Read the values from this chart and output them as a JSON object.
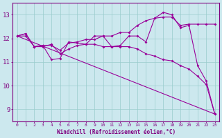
{
  "xlabel": "Windchill (Refroidissement éolien,°C)",
  "x_ticks": [
    0,
    1,
    2,
    3,
    4,
    5,
    6,
    7,
    8,
    9,
    10,
    11,
    12,
    13,
    14,
    15,
    16,
    17,
    18,
    19,
    20,
    21,
    22,
    23
  ],
  "ylim": [
    8.5,
    13.5
  ],
  "yticks": [
    9,
    10,
    11,
    12,
    13
  ],
  "bg_color": "#cce8ee",
  "line_color": "#990099",
  "grid_color": "#99cccc",
  "line1_x": [
    0,
    1,
    2,
    3,
    4,
    5,
    6,
    7,
    8,
    9,
    10,
    11,
    12,
    13,
    14,
    15,
    16,
    17,
    18,
    19,
    20,
    21,
    22,
    23
  ],
  "line1_y": [
    12.1,
    12.2,
    11.65,
    11.7,
    11.1,
    11.15,
    11.85,
    11.8,
    11.75,
    12.1,
    12.1,
    11.65,
    11.7,
    12.1,
    12.1,
    11.85,
    12.85,
    13.1,
    13.0,
    12.45,
    12.55,
    10.85,
    10.2,
    8.8
  ],
  "line2_x": [
    0,
    1,
    2,
    3,
    4,
    5,
    6,
    7,
    8,
    9,
    10,
    11,
    12,
    13,
    14,
    15,
    16,
    17,
    18,
    19,
    20,
    21,
    22,
    23
  ],
  "line2_y": [
    12.1,
    12.2,
    11.65,
    11.7,
    11.7,
    11.5,
    11.8,
    11.85,
    11.95,
    11.95,
    12.1,
    12.1,
    12.25,
    12.25,
    12.55,
    12.75,
    12.85,
    12.9,
    12.9,
    12.55,
    12.6,
    12.6,
    12.6,
    12.6
  ],
  "line3_x": [
    0,
    1,
    2,
    3,
    4,
    5,
    6,
    7,
    8,
    9,
    10,
    11,
    12,
    13,
    14,
    15,
    16,
    17,
    18,
    19,
    20,
    21,
    22,
    23
  ],
  "line3_y": [
    12.1,
    12.1,
    11.65,
    11.65,
    11.75,
    11.35,
    11.55,
    11.7,
    11.75,
    11.75,
    11.65,
    11.65,
    11.65,
    11.65,
    11.55,
    11.35,
    11.25,
    11.1,
    11.05,
    10.85,
    10.7,
    10.4,
    10.05,
    8.8
  ],
  "line4_x": [
    0,
    23
  ],
  "line4_y": [
    12.1,
    8.8
  ]
}
